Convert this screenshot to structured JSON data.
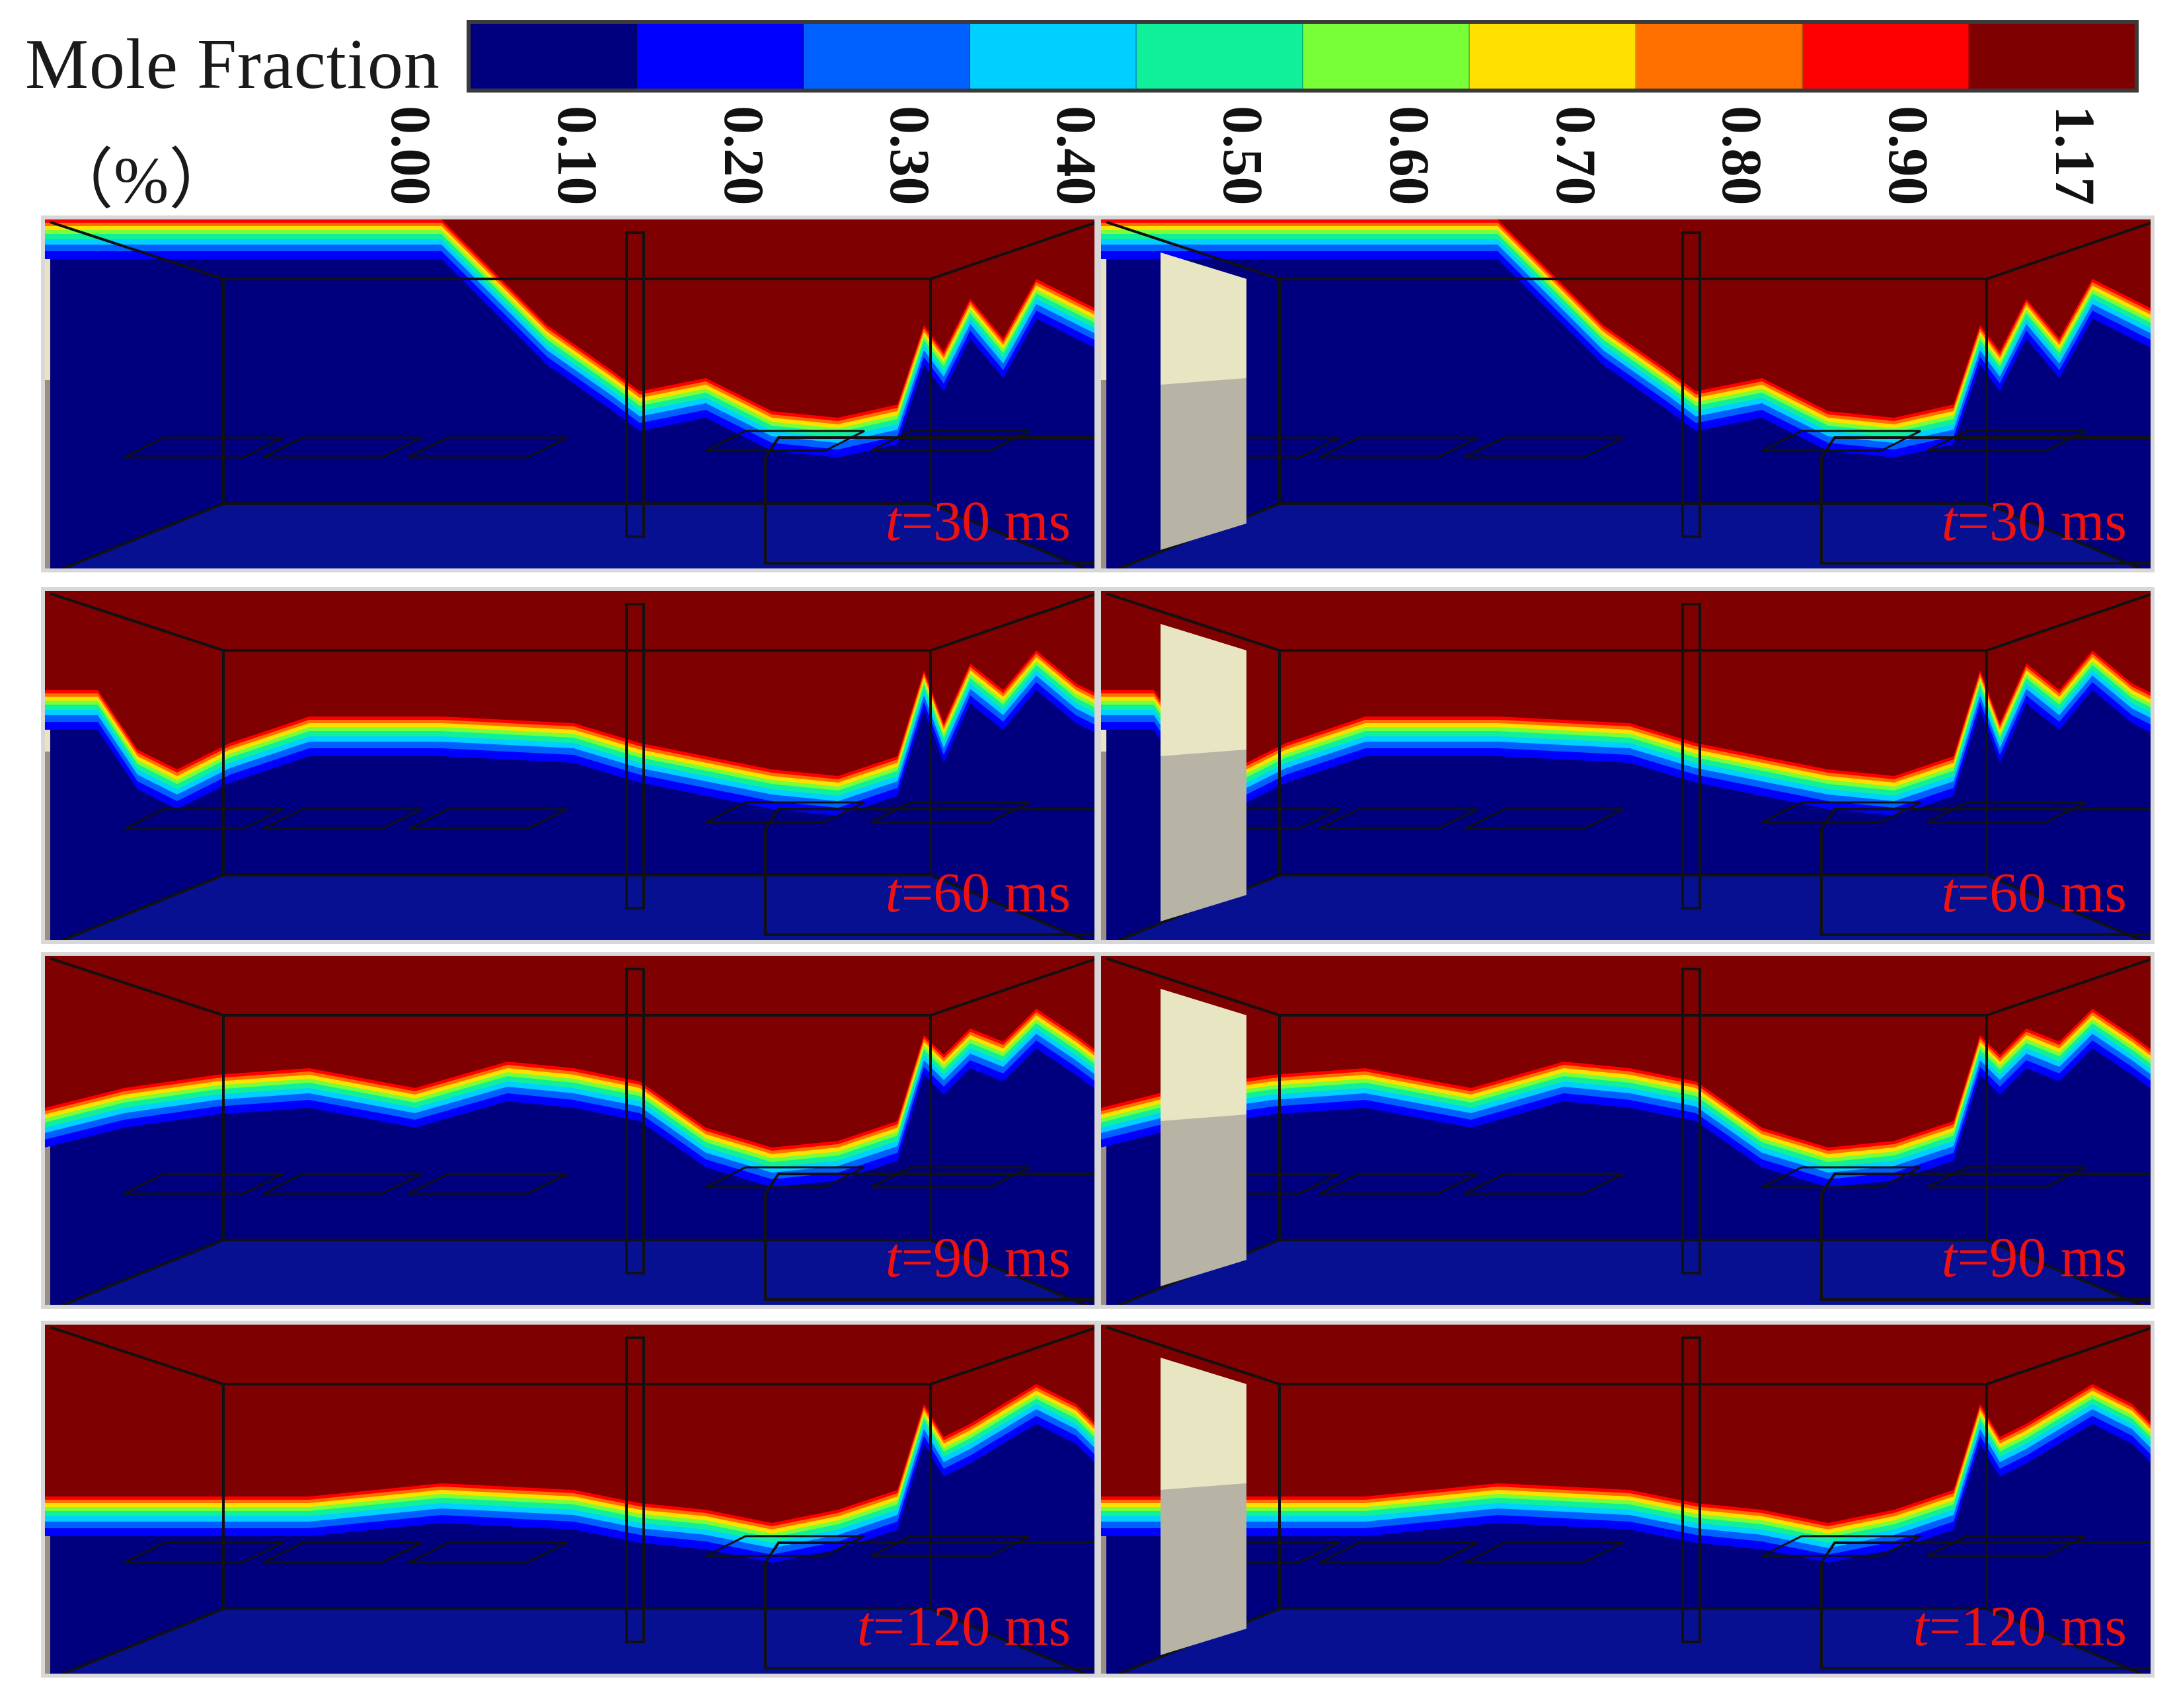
{
  "legend": {
    "title": "Mole Fraction",
    "unit": "（%）",
    "colors": [
      "#00007f",
      "#0000ff",
      "#0060ff",
      "#00d0ff",
      "#10f09a",
      "#78ff38",
      "#ffe000",
      "#ff7000",
      "#ff0000",
      "#7f0000"
    ],
    "ticks": [
      "0.00",
      "0.10",
      "0.20",
      "0.30",
      "0.40",
      "0.50",
      "0.60",
      "0.70",
      "0.80",
      "0.90",
      "1.17"
    ]
  },
  "panels": [
    {
      "time_var": "t",
      "time_value": "=30 ms"
    },
    {
      "time_var": "t",
      "time_value": "=30 ms"
    },
    {
      "time_var": "t",
      "time_value": "=60 ms"
    },
    {
      "time_var": "t",
      "time_value": "=60 ms"
    },
    {
      "time_var": "t",
      "time_value": "=90 ms"
    },
    {
      "time_var": "t",
      "time_value": "=90 ms"
    },
    {
      "time_var": "t",
      "time_value": "=120 ms"
    },
    {
      "time_var": "t",
      "time_value": "=120 ms"
    }
  ]
}
